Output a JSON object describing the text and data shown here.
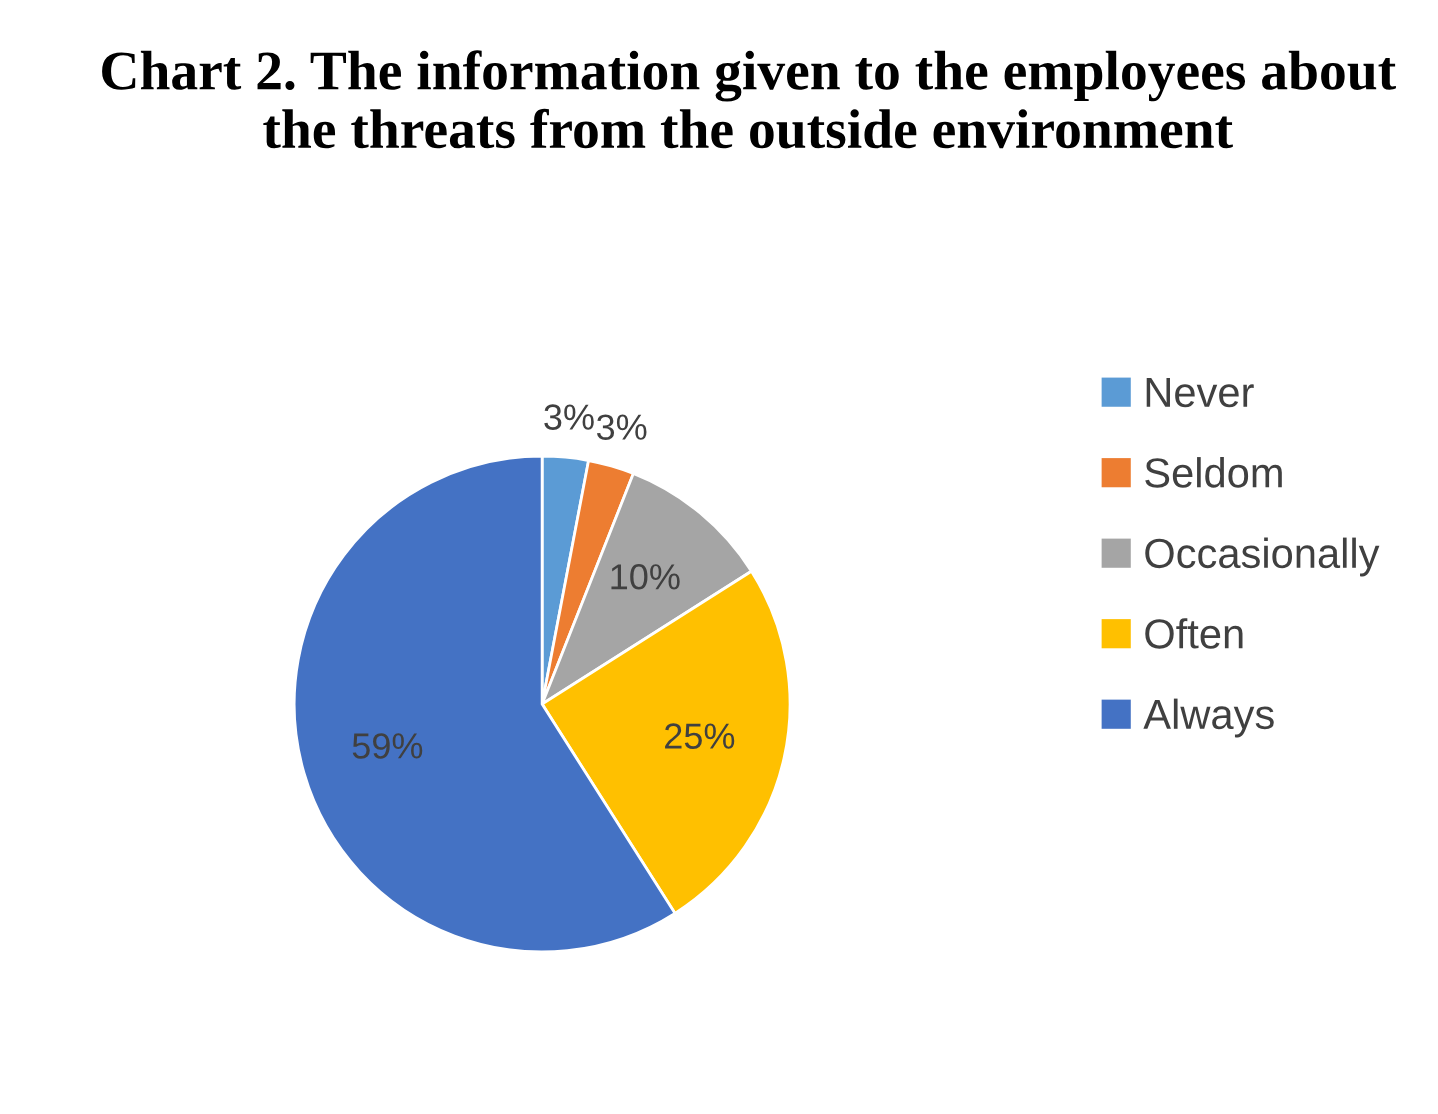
{
  "chart_data": {
    "type": "pie",
    "title": "Chart 2. The information given to the employees about the threats from the outside environment",
    "categories": [
      "Never",
      "Seldom",
      "Occasionally",
      "Often",
      "Always"
    ],
    "values": [
      3,
      3,
      10,
      25,
      59
    ],
    "colors": [
      "#5b9bd5",
      "#ed7d31",
      "#a5a5a5",
      "#ffc000",
      "#4472c4"
    ],
    "value_labels": [
      "3%",
      "3%",
      "10%",
      "25%",
      "59%"
    ],
    "legend": "right"
  }
}
